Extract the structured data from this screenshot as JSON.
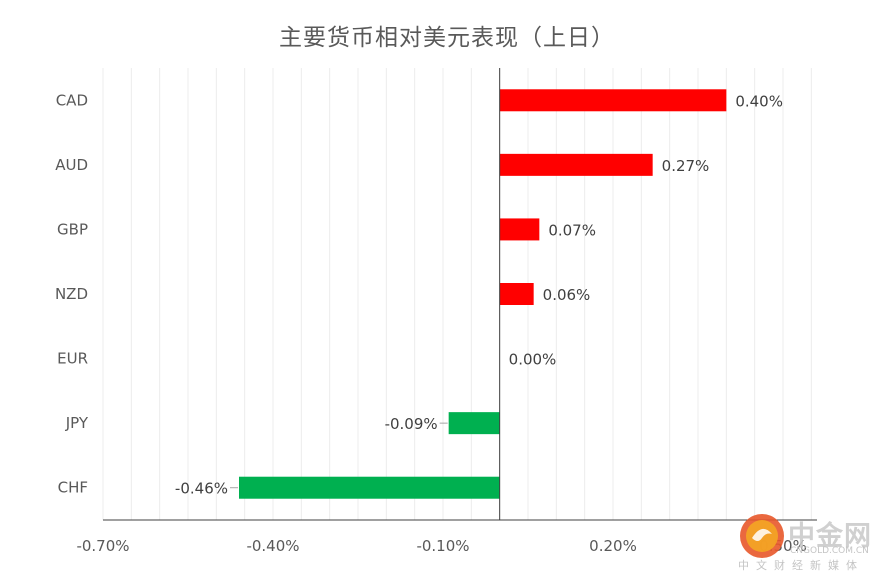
{
  "chart_data": {
    "type": "bar",
    "orientation": "horizontal",
    "title": "主要货币相对美元表现（上日）",
    "categories": [
      "CAD",
      "AUD",
      "GBP",
      "NZD",
      "EUR",
      "JPY",
      "CHF"
    ],
    "values": [
      0.4,
      0.27,
      0.07,
      0.06,
      0.0,
      -0.09,
      -0.46
    ],
    "value_labels": [
      "0.40%",
      "0.27%",
      "0.07%",
      "0.06%",
      "0.00%",
      "-0.09%",
      "-0.46%"
    ],
    "xlim": [
      -0.7,
      0.56
    ],
    "x_tick_labels": [
      "-0.70%",
      "-0.40%",
      "-0.10%",
      "0.20%",
      "0.50%"
    ],
    "x_tick_values": [
      -0.7,
      -0.4,
      -0.1,
      0.2,
      0.5
    ],
    "grid": "vertical minor",
    "legend": "none",
    "colors": {
      "positive": "#ff0000",
      "negative": "#00b050"
    }
  },
  "watermark": {
    "name": "中金网",
    "url": "CNGOLD.COM.CN",
    "subtitle": "中文财经新媒体"
  }
}
